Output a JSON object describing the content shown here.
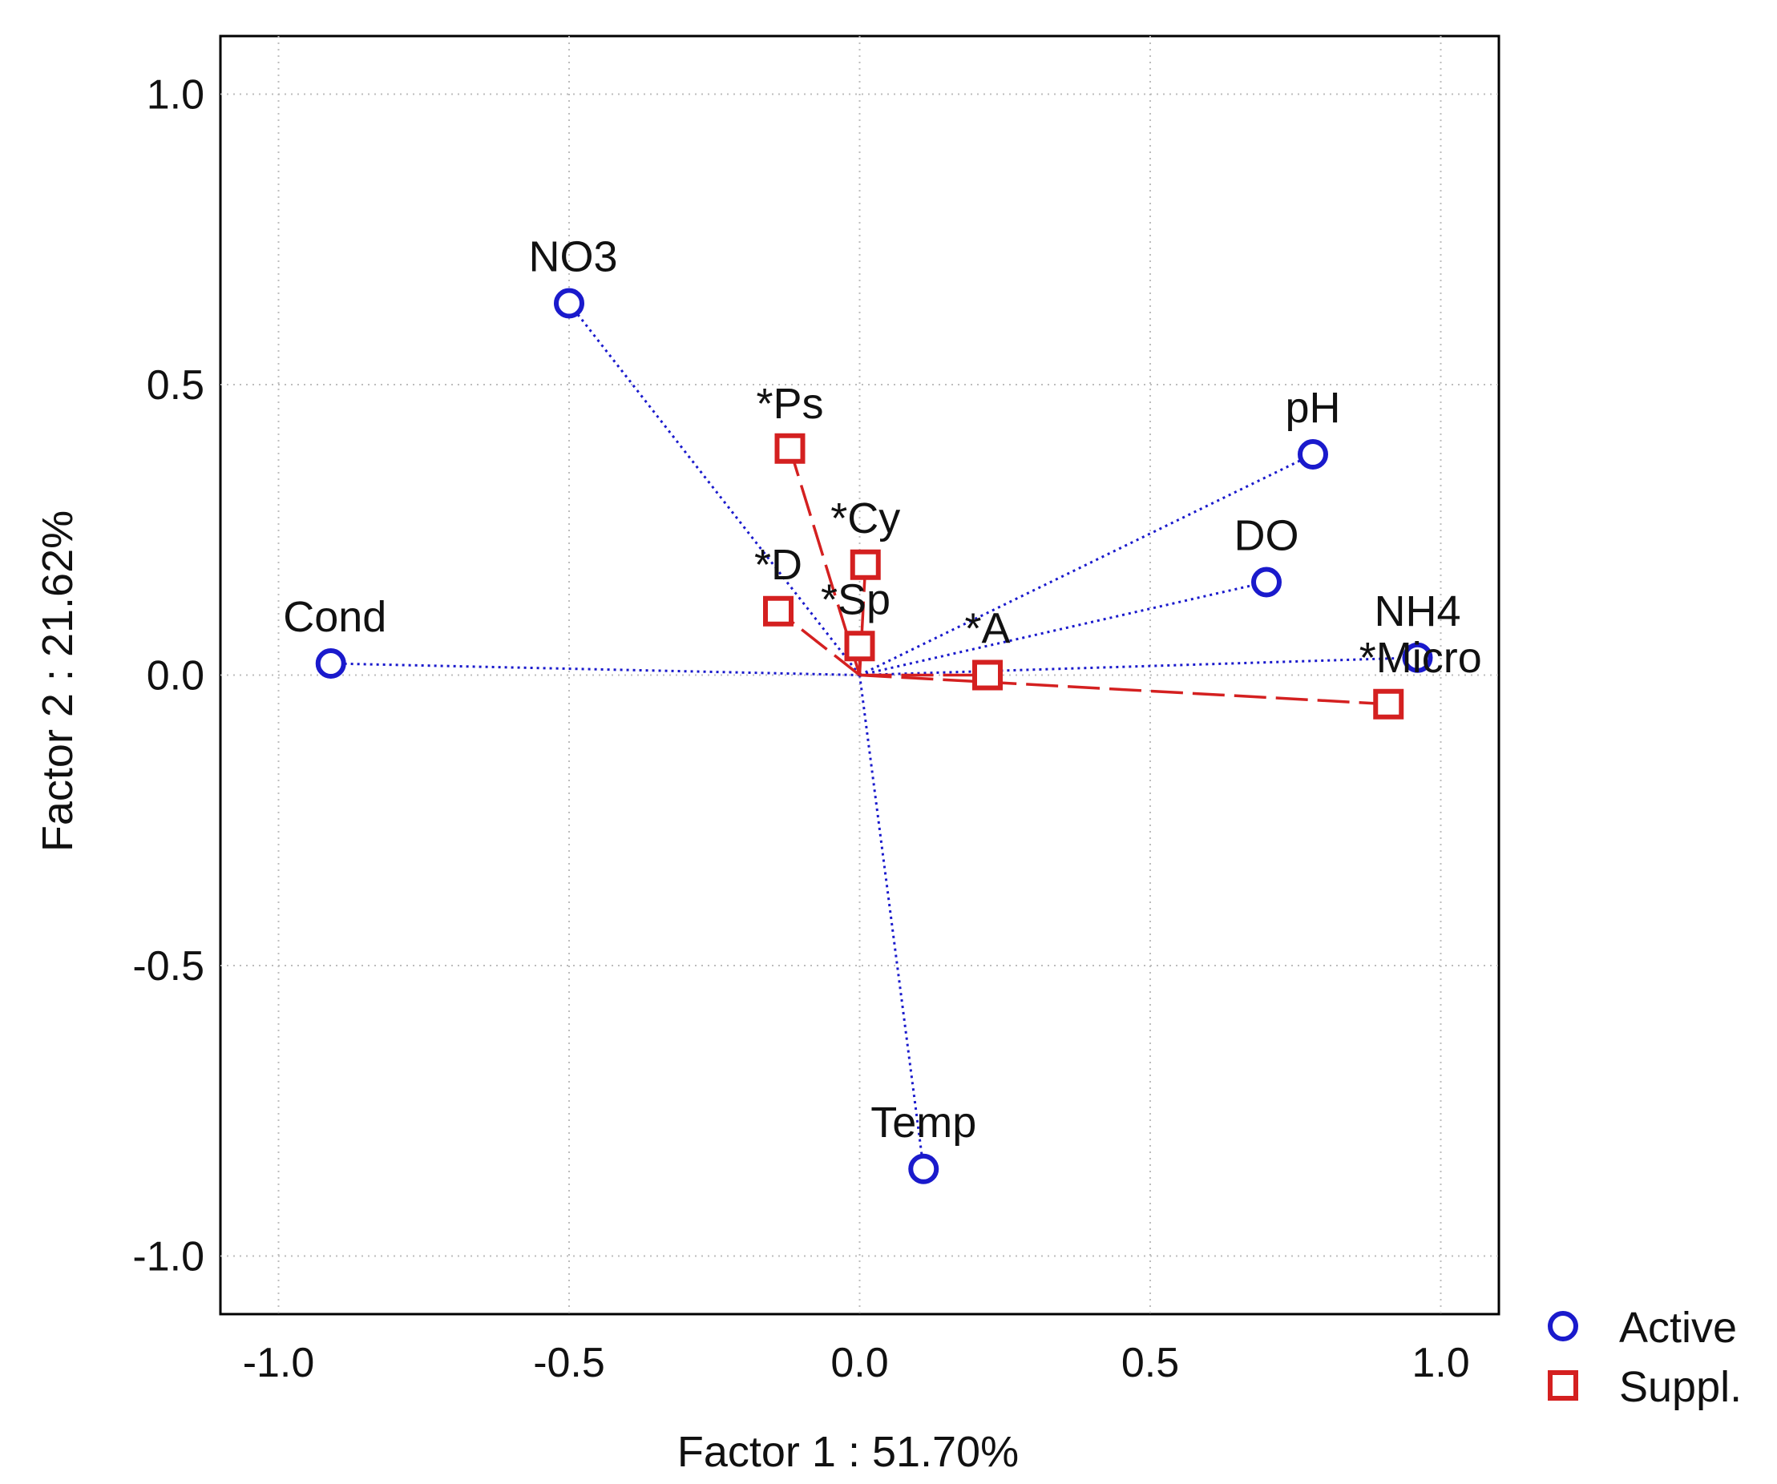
{
  "chart_data": {
    "type": "scatter",
    "title": "",
    "xlabel": "Factor 1 : 51.70%",
    "ylabel": "Factor 2 : 21.62%",
    "xlim": [
      -1.1,
      1.1
    ],
    "ylim": [
      -1.1,
      1.1
    ],
    "xticks": [
      -1.0,
      -0.5,
      0.0,
      0.5,
      1.0
    ],
    "yticks": [
      -1.0,
      -0.5,
      0.0,
      0.5,
      1.0
    ],
    "xtick_labels": [
      "-1.0",
      "-0.5",
      "0.0",
      "0.5",
      "1.0"
    ],
    "ytick_labels": [
      "-1.0",
      "-0.5",
      "0.0",
      "0.5",
      "1.0"
    ],
    "grid": true,
    "legend_position": "bottom-right outside",
    "colors": {
      "active": "#1a1acc",
      "suppl": "#d42020"
    },
    "series": [
      {
        "name": "Active",
        "marker": "circle",
        "points": [
          {
            "label": "NO3",
            "x": -0.5,
            "y": 0.64
          },
          {
            "label": "pH",
            "x": 0.78,
            "y": 0.38
          },
          {
            "label": "DO",
            "x": 0.7,
            "y": 0.16
          },
          {
            "label": "Cond",
            "x": -0.91,
            "y": 0.02
          },
          {
            "label": "NH4",
            "x": 0.96,
            "y": 0.03
          },
          {
            "label": "Temp",
            "x": 0.11,
            "y": -0.85
          }
        ]
      },
      {
        "name": "Suppl.",
        "marker": "square",
        "points": [
          {
            "label": "*Ps",
            "x": -0.12,
            "y": 0.39
          },
          {
            "label": "*Cy",
            "x": 0.01,
            "y": 0.19
          },
          {
            "label": "*D",
            "x": -0.14,
            "y": 0.11
          },
          {
            "label": "*Sp",
            "x": 0.0,
            "y": 0.05
          },
          {
            "label": "*A",
            "x": 0.22,
            "y": 0.0
          },
          {
            "label": "*Micro",
            "x": 0.91,
            "y": -0.05
          }
        ]
      }
    ]
  }
}
